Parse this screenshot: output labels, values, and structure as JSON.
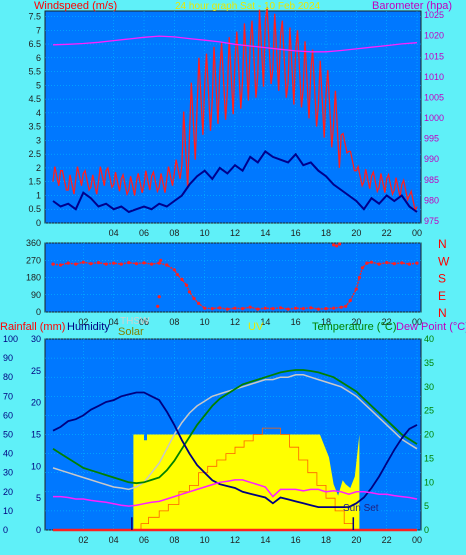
{
  "title": "24 hour graph Sat - 10 Feb 2024",
  "colors": {
    "background": "#5ff0f8",
    "plot": "#0078ff",
    "grid": "#00c8ff",
    "gust": "#ff2020",
    "avg_wind": "#00008c",
    "barometer": "#ff20ff",
    "direction": "#ff2020",
    "rain": "#ff2020",
    "humidity": "#000080",
    "solar": "#ffff00",
    "uv": "#ff6000",
    "temperature": "#008000",
    "thsw": "#c8c8c8",
    "dewpoint": "#ff20ff",
    "label_blue": "#000080",
    "label_magenta": "#c000c0",
    "label_green": "#008000",
    "label_yellow": "#e8e800",
    "label_red": "#ff0000"
  },
  "chart_data": [
    {
      "type": "line",
      "name": "wind-barometer",
      "ylabel": "Windspeed (m/s)",
      "y2label": "Barometer (hpa)",
      "ylim": [
        0,
        7.7
      ],
      "y2lim": [
        974.5,
        1026
      ],
      "yticks": [
        "0",
        "0.5",
        "1",
        "1.5",
        "2",
        "2.5",
        "3",
        "3.5",
        "4",
        "4.5",
        "5",
        "5.5",
        "6",
        "6.5",
        "7",
        "7.5"
      ],
      "y2ticks": [
        "975",
        "980",
        "985",
        "990",
        "995",
        "1000",
        "1005",
        "1010",
        "1015",
        "1020",
        "1025"
      ],
      "xticks": [
        "04",
        "06",
        "08",
        "10",
        "12",
        "14",
        "16",
        "18",
        "20",
        "22",
        "00"
      ],
      "series": [
        {
          "key": "gust",
          "x": [
            0,
            0.5,
            1,
            1.5,
            2,
            2.5,
            3,
            3.5,
            4,
            4.5,
            5,
            5.5,
            6,
            6.5,
            7,
            7.5,
            8,
            8.5,
            9,
            9.5,
            10,
            10.5,
            11,
            11.5,
            12,
            12.5,
            13,
            13.5,
            14,
            14.5,
            15,
            15.5,
            16,
            16.5,
            17,
            17.5,
            18,
            18.5,
            19,
            19.5,
            20,
            20.5,
            21,
            21.5,
            22,
            22.5,
            23,
            23.5,
            24
          ],
          "values": [
            1.5,
            1.9,
            1.2,
            1.6,
            1.8,
            1.3,
            1.5,
            1.9,
            1.4,
            1.6,
            1.2,
            1.5,
            1.4,
            1.7,
            1.3,
            1.6,
            1.8,
            2.1,
            3.2,
            4.2,
            5.0,
            4.5,
            5.5,
            4.8,
            5.9,
            5.2,
            6.5,
            5.4,
            7.3,
            5.6,
            6.8,
            5.1,
            6.3,
            4.9,
            5.5,
            4.3,
            4.7,
            3.6,
            3.2,
            2.6,
            1.9,
            1.5,
            1.7,
            1.3,
            1.6,
            1.2,
            1.4,
            1.0,
            0.6
          ]
        },
        {
          "key": "avg_wind",
          "x": [
            0,
            0.5,
            1,
            1.5,
            2,
            2.5,
            3,
            3.5,
            4,
            4.5,
            5,
            5.5,
            6,
            6.5,
            7,
            7.5,
            8,
            8.5,
            9,
            9.5,
            10,
            10.5,
            11,
            11.5,
            12,
            12.5,
            13,
            13.5,
            14,
            14.5,
            15,
            15.5,
            16,
            16.5,
            17,
            17.5,
            18,
            18.5,
            19,
            19.5,
            20,
            20.5,
            21,
            21.5,
            22,
            22.5,
            23,
            23.5,
            24
          ],
          "values": [
            0.8,
            0.6,
            0.7,
            0.5,
            1.1,
            0.9,
            0.6,
            0.7,
            0.5,
            0.6,
            0.4,
            0.5,
            0.6,
            0.5,
            0.7,
            0.6,
            0.8,
            1.0,
            1.4,
            1.7,
            1.9,
            1.6,
            2.0,
            1.8,
            2.1,
            1.9,
            2.4,
            2.2,
            2.6,
            2.4,
            2.3,
            2.2,
            2.5,
            2.1,
            2.2,
            1.9,
            1.7,
            1.4,
            1.2,
            1.0,
            0.8,
            0.5,
            0.9,
            0.7,
            1.0,
            0.8,
            1.0,
            0.6,
            0.4
          ]
        },
        {
          "key": "barometer",
          "axis": "y2",
          "x": [
            0,
            1,
            2,
            3,
            4,
            5,
            6,
            7,
            8,
            9,
            10,
            11,
            12,
            13,
            14,
            15,
            16,
            17,
            18,
            19,
            20,
            21,
            22,
            23,
            24
          ],
          "values": [
            1017.8,
            1017.9,
            1018.1,
            1018.4,
            1018.8,
            1019.2,
            1019.6,
            1019.9,
            1019.7,
            1019.3,
            1018.9,
            1018.5,
            1017.9,
            1017.5,
            1017.1,
            1016.7,
            1016.3,
            1016.1,
            1016.1,
            1016.4,
            1016.8,
            1017.2,
            1017.6,
            1018.0,
            1018.3
          ]
        }
      ]
    },
    {
      "type": "scatter",
      "name": "wind-direction",
      "yticks": [
        "0",
        "90",
        "180",
        "270",
        "360"
      ],
      "ylim": [
        0,
        360
      ],
      "compass": [
        "N",
        "W",
        "S",
        "E",
        "N"
      ],
      "xticks": [
        "02",
        "04",
        "06",
        "08",
        "10",
        "12",
        "14",
        "16",
        "18",
        "20",
        "22",
        "00"
      ],
      "series": [
        {
          "key": "direction",
          "x": [
            0,
            0.5,
            1,
            1.5,
            2,
            2.5,
            3,
            3.5,
            4,
            4.5,
            5,
            5.5,
            6,
            6.5,
            7,
            7.5,
            8,
            8.2,
            8.5,
            8.8,
            9,
            9.3,
            9.6,
            10,
            10.5,
            11,
            11.5,
            12,
            12.5,
            13,
            13.5,
            14,
            14.5,
            15,
            15.5,
            16,
            16.5,
            17,
            17.5,
            18,
            18.5,
            19,
            19.3,
            19.6,
            20,
            20.2,
            20.4,
            20.7,
            21,
            21.5,
            22,
            22.5,
            23,
            23.5,
            24
          ],
          "values": [
            250,
            245,
            255,
            250,
            260,
            252,
            258,
            250,
            255,
            250,
            258,
            252,
            256,
            250,
            255,
            245,
            220,
            195,
            170,
            140,
            105,
            70,
            45,
            20,
            18,
            22,
            15,
            20,
            18,
            25,
            15,
            20,
            18,
            22,
            15,
            20,
            18,
            22,
            15,
            18,
            20,
            25,
            30,
            60,
            120,
            180,
            230,
            255,
            260,
            250,
            258,
            252,
            256,
            250,
            255
          ]
        },
        {
          "key": "direction",
          "x": [
            6.9,
            7.0,
            7.1,
            18.5,
            18.7,
            18.9
          ],
          "values": [
            30,
            80,
            270,
            350,
            345,
            355
          ]
        }
      ]
    },
    {
      "type": "line",
      "name": "weather-multi",
      "labels": {
        "rainfall": "Rainfall (mm)",
        "humidity": "Humidity",
        "thsw": "THSW",
        "solar": "Solar",
        "uv": "UV",
        "temperature": "Temperature (°C)",
        "dewpoint": "Dew Point (°C)"
      },
      "yticks_humidity": [
        "0",
        "10",
        "20",
        "30",
        "40",
        "50",
        "60",
        "70",
        "80",
        "90",
        "100"
      ],
      "yticks_rain": [
        "0",
        "5",
        "10",
        "15",
        "20",
        "25",
        "30"
      ],
      "yticks_temp": [
        "0",
        "5",
        "10",
        "15",
        "20",
        "25",
        "30",
        "35",
        "40"
      ],
      "xticks": [
        "02",
        "04",
        "06",
        "08",
        "10",
        "12",
        "14",
        "16",
        "18",
        "20",
        "22",
        "00"
      ],
      "annotation": "Sun Set",
      "series": [
        {
          "key": "humidity",
          "axis": "humidity",
          "x": [
            0,
            0.5,
            1,
            1.5,
            2,
            2.5,
            3,
            3.5,
            4,
            4.5,
            5,
            5.5,
            6,
            6.5,
            7,
            7.5,
            8,
            8.5,
            9,
            9.5,
            10,
            10.5,
            11,
            11.5,
            12,
            12.5,
            13,
            13.5,
            14,
            14.5,
            15,
            15.5,
            16,
            16.5,
            17,
            17.5,
            18,
            18.5,
            19,
            19.5,
            20,
            20.5,
            21,
            21.5,
            22,
            22.5,
            23,
            23.5,
            24
          ],
          "values": [
            52,
            54,
            57,
            58,
            60,
            63,
            65,
            67,
            68,
            70,
            71,
            72,
            72,
            70,
            68,
            62,
            55,
            47,
            40,
            34,
            30,
            26,
            24,
            23,
            22,
            20,
            19,
            18,
            17,
            14,
            17,
            16,
            15,
            14,
            13,
            12,
            12,
            12,
            12,
            12,
            14,
            17,
            22,
            28,
            35,
            42,
            48,
            53,
            55
          ]
        },
        {
          "key": "temperature",
          "axis": "temp",
          "x": [
            0,
            0.5,
            1,
            1.5,
            2,
            2.5,
            3,
            3.5,
            4,
            4.5,
            5,
            5.5,
            6,
            6.5,
            7,
            7.5,
            8,
            8.5,
            9,
            9.5,
            10,
            10.5,
            11,
            11.5,
            12,
            12.5,
            13,
            13.5,
            14,
            14.5,
            15,
            15.5,
            16,
            16.5,
            17,
            17.5,
            18,
            18.5,
            19,
            19.5,
            20,
            20.5,
            21,
            21.5,
            22,
            22.5,
            23,
            23.5,
            24
          ],
          "values": [
            17,
            16,
            15,
            14,
            13,
            12.5,
            12,
            11.5,
            11,
            10.5,
            10,
            9.8,
            10,
            10.5,
            11,
            12.5,
            14.5,
            17,
            19.5,
            22,
            24,
            26,
            27.5,
            28.5,
            29.5,
            30.5,
            31,
            31.5,
            32,
            32.5,
            33,
            33.3,
            33.5,
            33.5,
            33.3,
            33,
            32.5,
            32,
            31,
            30,
            29,
            27.5,
            26,
            24.5,
            23,
            21.5,
            20,
            19,
            18
          ]
        },
        {
          "key": "thsw",
          "axis": "temp",
          "x": [
            0,
            0.5,
            1,
            1.5,
            2,
            2.5,
            3,
            3.5,
            4,
            4.5,
            5,
            5.5,
            6,
            6.5,
            7,
            7.5,
            8,
            8.5,
            9,
            9.5,
            10,
            10.5,
            11,
            11.5,
            12,
            12.5,
            13,
            13.5,
            14,
            14.5,
            15,
            15.5,
            16,
            16.5,
            17,
            17.5,
            18,
            18.5,
            19,
            19.5,
            20,
            20.5,
            21,
            21.5,
            22,
            22.5,
            23,
            23.5,
            24
          ],
          "values": [
            13,
            12.5,
            12,
            11.5,
            11,
            10.5,
            10,
            9.5,
            9,
            8.8,
            8.5,
            9,
            10,
            12,
            14,
            17,
            20,
            22.5,
            24.5,
            26,
            27,
            28,
            28.5,
            29,
            29.5,
            30,
            30.5,
            31,
            31.5,
            31.5,
            32,
            32,
            32.5,
            32.5,
            32,
            31.5,
            31,
            30.5,
            30,
            29,
            28,
            26.5,
            25,
            23.5,
            22,
            20.5,
            19,
            18,
            17
          ]
        },
        {
          "key": "dewpoint",
          "axis": "temp",
          "x": [
            0,
            0.5,
            1,
            1.5,
            2,
            2.5,
            3,
            3.5,
            4,
            4.5,
            5,
            5.5,
            6,
            6.5,
            7,
            7.5,
            8,
            8.5,
            9,
            9.5,
            10,
            10.5,
            11,
            11.5,
            12,
            12.5,
            13,
            13.5,
            14,
            14.5,
            15,
            15.5,
            16,
            16.5,
            17,
            17.5,
            18,
            18.5,
            19,
            19.5,
            20,
            20.5,
            21,
            21.5,
            22,
            22.5,
            23,
            23.5,
            24
          ],
          "values": [
            7,
            7,
            6.8,
            6.5,
            6.5,
            6.2,
            6,
            5.8,
            5.5,
            5.2,
            5,
            5.2,
            5.5,
            5.8,
            6,
            6.5,
            7,
            7.5,
            8,
            8.5,
            9,
            9.5,
            10,
            10.2,
            10.5,
            10.5,
            10,
            9.5,
            9,
            7,
            8.5,
            8.5,
            8.5,
            8.2,
            8.5,
            8.5,
            8,
            8.2,
            8,
            7.5,
            8,
            8,
            7.8,
            7.5,
            7.5,
            7.2,
            7,
            6.8,
            6.5
          ]
        },
        {
          "key": "solar",
          "axis": "humidity",
          "x": [
            5.3,
            5.3,
            6.0,
            6.0,
            6.2,
            6.2,
            9.0,
            9.0,
            17.6,
            17.6,
            18.2,
            18.5,
            18.8,
            19.1,
            19.3,
            19.6,
            19.9,
            20.2,
            20.2
          ],
          "values": [
            0,
            50,
            50,
            47,
            47,
            50,
            50,
            50,
            50,
            50,
            38,
            24,
            18,
            26,
            24,
            22,
            28,
            50,
            0
          ]
        },
        {
          "key": "uv",
          "axis": "rain",
          "x": [
            5.3,
            5.8,
            6.3,
            7.0,
            7.6,
            8.3,
            9.0,
            9.6,
            10.2,
            10.8,
            11.4,
            12.0,
            12.6,
            13.2,
            13.8,
            14.4,
            15.0,
            15.6,
            16.2,
            16.8,
            17.4,
            18.0,
            18.6,
            19.2,
            19.8
          ],
          "values": [
            0,
            1,
            2,
            3,
            4,
            6,
            7,
            9,
            10,
            11,
            12,
            13,
            14,
            15,
            16,
            16,
            15,
            13,
            11,
            9,
            7,
            5,
            3,
            1,
            0
          ]
        },
        {
          "key": "rain",
          "axis": "rain",
          "x": [
            0,
            24
          ],
          "values": [
            0,
            0
          ]
        },
        {
          "key": "rain_ticks",
          "axis": "rain",
          "x": [
            5.2,
            19.8
          ],
          "values": [
            2,
            2
          ]
        }
      ]
    }
  ]
}
